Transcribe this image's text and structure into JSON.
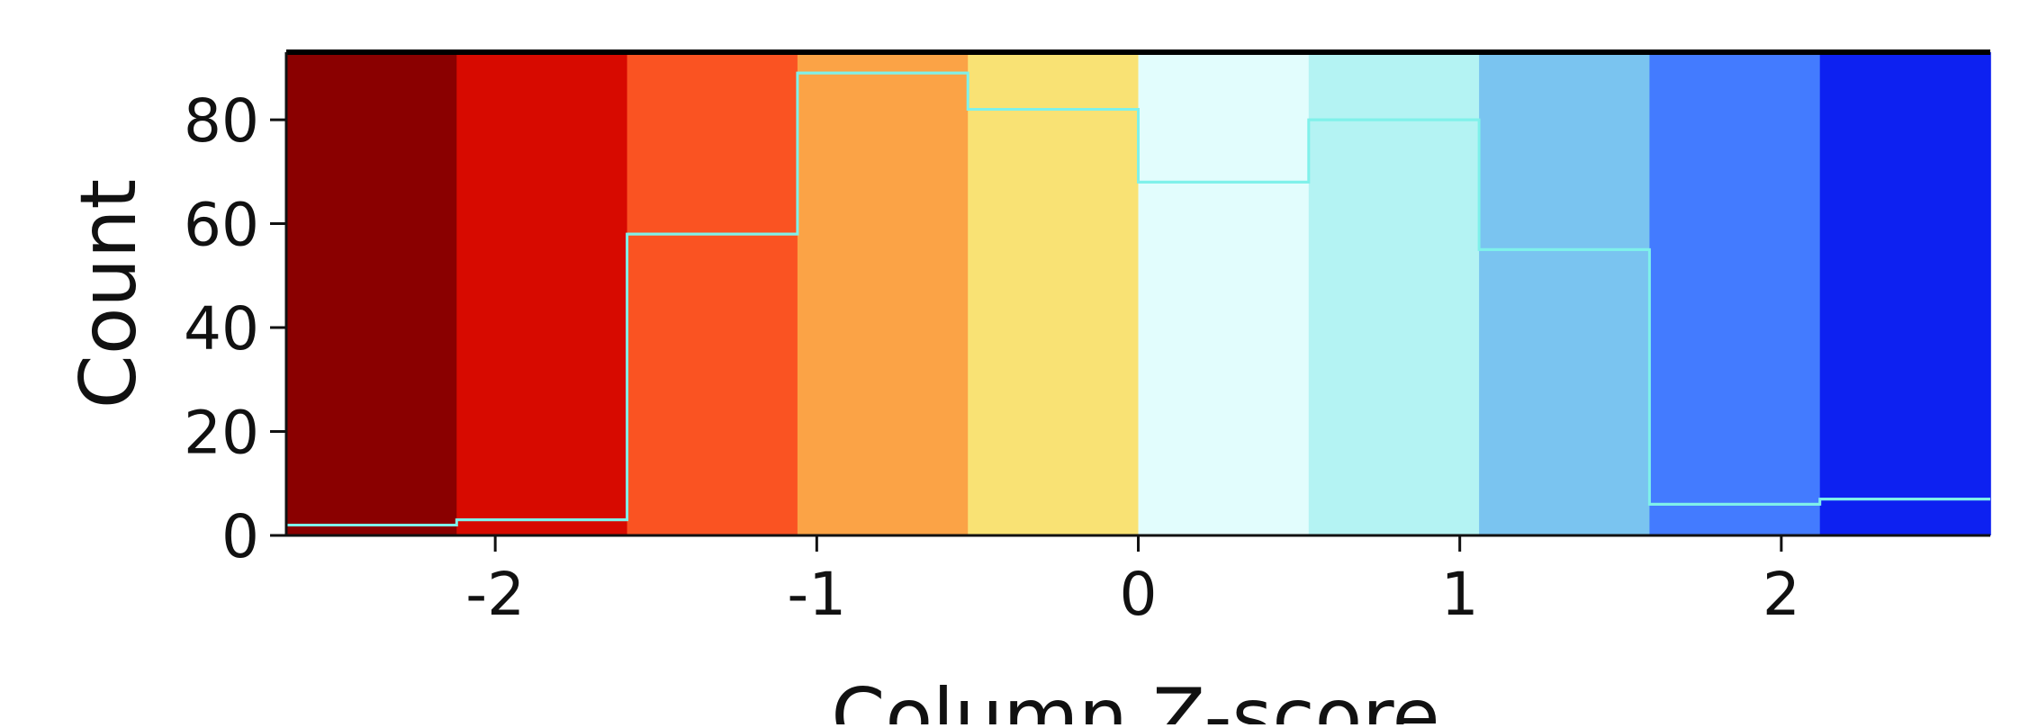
{
  "chart_data": {
    "type": "bar",
    "title": "",
    "xlabel": "Column Z-score",
    "ylabel": "Count",
    "xlim": [
      -2.65,
      2.65
    ],
    "ylim": [
      0,
      93
    ],
    "x_ticks": [
      -2,
      -1,
      0,
      1,
      2
    ],
    "x_tick_labels": [
      "-2",
      "-1",
      "0",
      "1",
      "2"
    ],
    "y_ticks": [
      0,
      20,
      40,
      60,
      80
    ],
    "y_tick_labels": [
      "0",
      "20",
      "40",
      "60",
      "80"
    ],
    "bin_edges": [
      -2.65,
      -2.12,
      -1.59,
      -1.06,
      -0.53,
      0.0,
      0.53,
      1.06,
      1.59,
      2.12,
      2.65
    ],
    "bin_colors": [
      "#8a0000",
      "#d70a00",
      "#fa5322",
      "#fba346",
      "#f9e274",
      "#e2fdfd",
      "#b4f3f3",
      "#7ac4f0",
      "#437bff",
      "#0d21f1"
    ],
    "series": [
      {
        "values": [
          2,
          3,
          58,
          89,
          82,
          68,
          80,
          55,
          6,
          7
        ]
      }
    ],
    "step_line_color": "#7ff1ea",
    "grid": false,
    "legend": "none"
  }
}
